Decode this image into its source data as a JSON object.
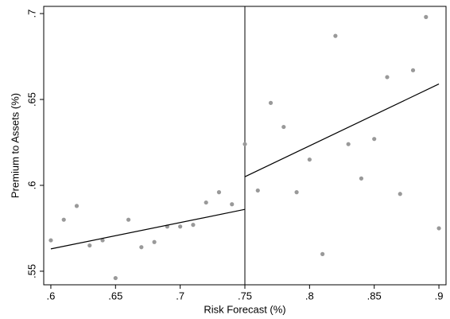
{
  "chart_data": {
    "type": "scatter",
    "xlabel": "Risk Forecast (%)",
    "ylabel": "Premium to Assets (%)",
    "x": [
      0.6,
      0.61,
      0.62,
      0.63,
      0.64,
      0.65,
      0.66,
      0.67,
      0.68,
      0.69,
      0.7,
      0.71,
      0.72,
      0.73,
      0.74,
      0.75,
      0.76,
      0.77,
      0.78,
      0.79,
      0.8,
      0.81,
      0.82,
      0.83,
      0.84,
      0.85,
      0.86,
      0.87,
      0.88,
      0.89,
      0.9
    ],
    "values": [
      0.568,
      0.58,
      0.588,
      0.565,
      0.568,
      0.546,
      0.58,
      0.564,
      0.567,
      0.576,
      0.576,
      0.577,
      0.59,
      0.596,
      0.589,
      0.624,
      0.597,
      0.648,
      0.634,
      0.596,
      0.615,
      0.56,
      0.687,
      0.624,
      0.604,
      0.627,
      0.663,
      0.595,
      0.667,
      0.698,
      0.575
    ],
    "color": "#999999",
    "fit_left": {
      "x": [
        0.6,
        0.75
      ],
      "values": [
        0.563,
        0.586
      ]
    },
    "fit_right": {
      "x": [
        0.75,
        0.9
      ],
      "values": [
        0.605,
        0.659
      ]
    },
    "cutoff": 0.75,
    "xlim": [
      0.5945,
      0.9055
    ],
    "ylim": [
      0.5421,
      0.7042
    ],
    "xticks": [
      {
        "value": 0.6,
        "label": ".6"
      },
      {
        "value": 0.65,
        "label": ".65"
      },
      {
        "value": 0.7,
        "label": ".7"
      },
      {
        "value": 0.75,
        "label": ".75"
      },
      {
        "value": 0.8,
        "label": ".8"
      },
      {
        "value": 0.85,
        "label": ".85"
      },
      {
        "value": 0.9,
        "label": ".9"
      }
    ],
    "yticks": [
      {
        "value": 0.55,
        "label": ".55"
      },
      {
        "value": 0.6,
        "label": ".6"
      },
      {
        "value": 0.65,
        "label": ".65"
      },
      {
        "value": 0.7,
        "label": ".7"
      }
    ]
  }
}
